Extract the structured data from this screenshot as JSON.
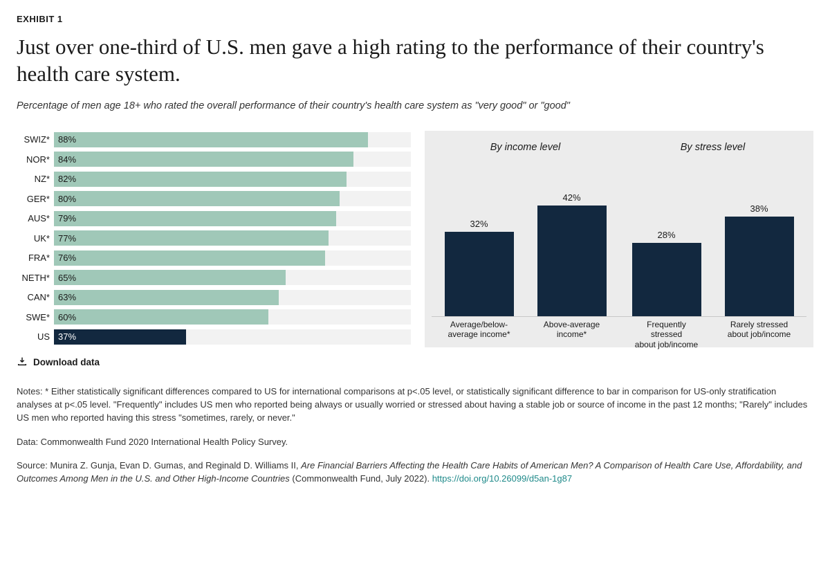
{
  "exhibit_label": "EXHIBIT 1",
  "title": "Just over one-third of U.S. men gave a high rating to the performance of their country's health care system.",
  "subtitle": "Percentage of men age 18+ who rated the overall performance of their country's health care system as \"very good\" or \"good\"",
  "colors": {
    "bar_green": "#a0c8b8",
    "bar_dark": "#12283f",
    "panel_bg": "#ececec",
    "track_bg": "#f2f2f2",
    "text_on_dark": "#ffffff",
    "text_on_light": "#1a1a1a",
    "link": "#1f8a8a"
  },
  "hbar": {
    "max": 100,
    "rows": [
      {
        "label": "SWIZ*",
        "value": 88,
        "value_label": "88%",
        "highlight": false
      },
      {
        "label": "NOR*",
        "value": 84,
        "value_label": "84%",
        "highlight": false
      },
      {
        "label": "NZ*",
        "value": 82,
        "value_label": "82%",
        "highlight": false
      },
      {
        "label": "GER*",
        "value": 80,
        "value_label": "80%",
        "highlight": false
      },
      {
        "label": "AUS*",
        "value": 79,
        "value_label": "79%",
        "highlight": false
      },
      {
        "label": "UK*",
        "value": 77,
        "value_label": "77%",
        "highlight": false
      },
      {
        "label": "FRA*",
        "value": 76,
        "value_label": "76%",
        "highlight": false
      },
      {
        "label": "NETH*",
        "value": 65,
        "value_label": "65%",
        "highlight": false
      },
      {
        "label": "CAN*",
        "value": 63,
        "value_label": "63%",
        "highlight": false
      },
      {
        "label": "SWE*",
        "value": 60,
        "value_label": "60%",
        "highlight": false
      },
      {
        "label": "US",
        "value": 37,
        "value_label": "37%",
        "highlight": true
      }
    ]
  },
  "panel": {
    "vmax": 50,
    "groups": [
      {
        "title": "By income level",
        "bars": [
          {
            "label": "Average/below-\naverage income*",
            "value": 32,
            "value_label": "32%"
          },
          {
            "label": "Above-average\nincome*",
            "value": 42,
            "value_label": "42%"
          }
        ]
      },
      {
        "title": "By stress level",
        "bars": [
          {
            "label": "Frequently stressed\nabout job/income",
            "value": 28,
            "value_label": "28%"
          },
          {
            "label": "Rarely stressed\nabout job/income",
            "value": 38,
            "value_label": "38%"
          }
        ]
      }
    ]
  },
  "download_label": "Download data",
  "notes": "Notes: * Either statistically significant differences compared to US for international comparisons at p<.05 level, or statistically significant difference to bar in comparison for US-only stratification analyses at p<.05 level. \"Frequently\" includes US men who reported being always or usually worried or stressed about having a stable job or source of income in the past 12 months; \"Rarely\" includes US men who reported having this stress \"sometimes, rarely, or never.\"",
  "data_line": "Data: Commonwealth Fund 2020 International Health Policy Survey.",
  "source_prefix": "Source: Munira Z. Gunja, Evan D. Gumas, and Reginald D. Williams II, ",
  "source_italic": "Are Financial Barriers Affecting the Health Care Habits of American Men? A Comparison of Health Care Use, Affordability, and Outcomes Among Men in the U.S. and Other High-Income Countries",
  "source_suffix": " (Commonwealth Fund, July 2022). ",
  "source_link": "https://doi.org/10.26099/d5an-1g87"
}
